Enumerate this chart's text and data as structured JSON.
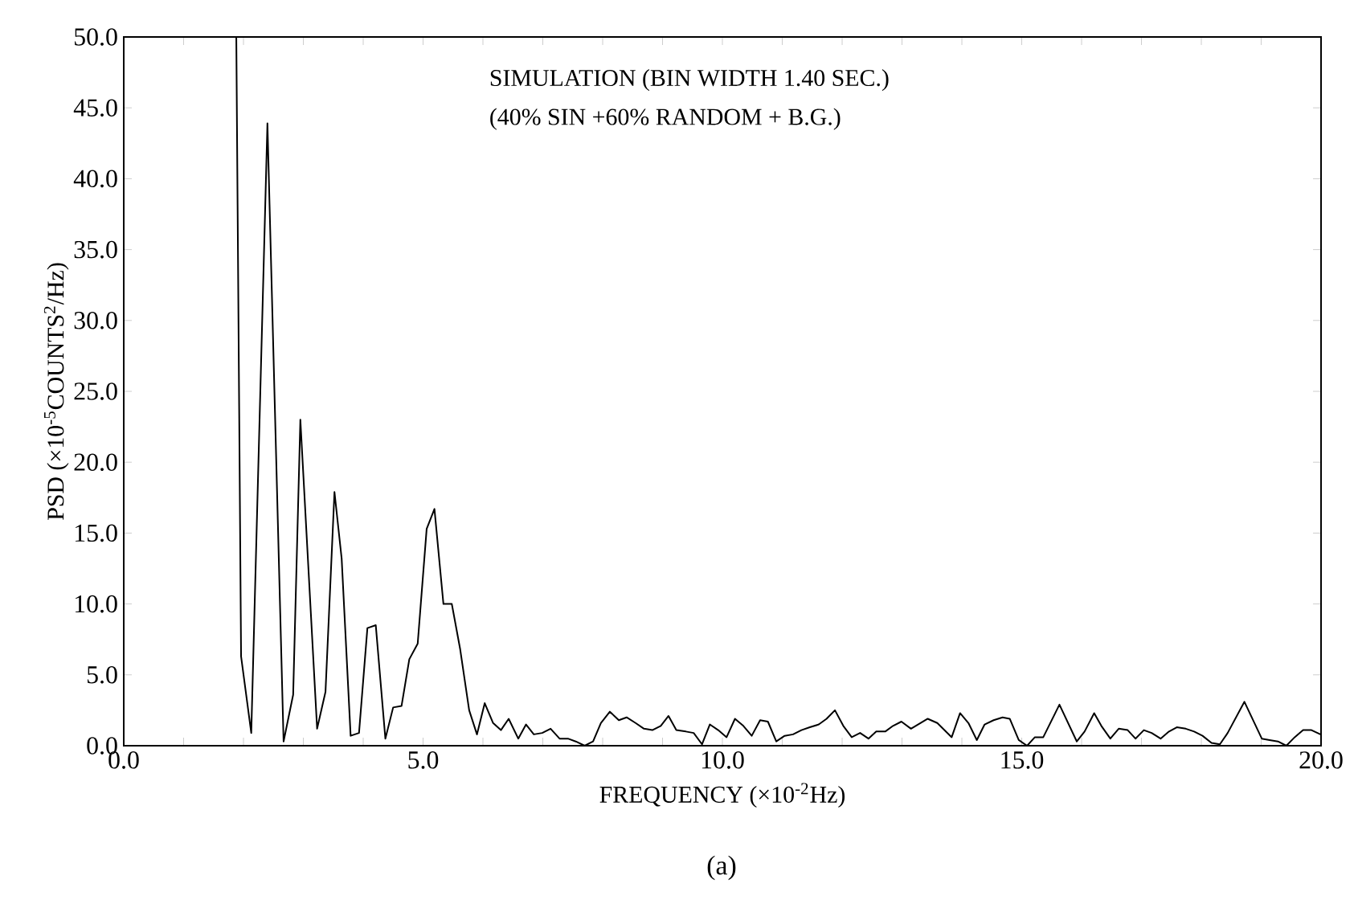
{
  "chart_data": {
    "type": "line",
    "color": "#000000",
    "xlabel": "FREQUENCY (×10$^{-2}$Hz)",
    "ylabel": "PSD (×10$^{-5}$COUNTS$^{2}$/Hz)",
    "annotations": [
      "SIMULATION (BIN WIDTH 1.40 SEC.)",
      "(40% SIN +60% RANDOM + B.G.)",
      "(a)"
    ],
    "xlim": [
      0,
      20
    ],
    "ylim": [
      0,
      50
    ],
    "xticks": [
      {
        "value": 0,
        "label": "0.0"
      },
      {
        "value": 1,
        "label": null
      },
      {
        "value": 2,
        "label": null
      },
      {
        "value": 3,
        "label": null
      },
      {
        "value": 4,
        "label": null
      },
      {
        "value": 5,
        "label": "5.0"
      },
      {
        "value": 6,
        "label": null
      },
      {
        "value": 7,
        "label": null
      },
      {
        "value": 8,
        "label": null
      },
      {
        "value": 9,
        "label": null
      },
      {
        "value": 10,
        "label": "10.0"
      },
      {
        "value": 11,
        "label": null
      },
      {
        "value": 12,
        "label": null
      },
      {
        "value": 13,
        "label": null
      },
      {
        "value": 14,
        "label": null
      },
      {
        "value": 15,
        "label": "15.0"
      },
      {
        "value": 16,
        "label": null
      },
      {
        "value": 17,
        "label": null
      },
      {
        "value": 18,
        "label": null
      },
      {
        "value": 19,
        "label": null
      },
      {
        "value": 20,
        "label": "20.0"
      }
    ],
    "yticks": [
      {
        "value": 0,
        "label": "0.0"
      },
      {
        "value": 5,
        "label": "5.0"
      },
      {
        "value": 10,
        "label": "10.0"
      },
      {
        "value": 15,
        "label": "15.0"
      },
      {
        "value": 20,
        "label": "20.0"
      },
      {
        "value": 25,
        "label": "25.0"
      },
      {
        "value": 30,
        "label": "30.0"
      },
      {
        "value": 35,
        "label": "35.0"
      },
      {
        "value": 40,
        "label": "40.0"
      },
      {
        "value": 45,
        "label": "45.0"
      },
      {
        "value": 50,
        "label": "50.0"
      }
    ],
    "x": [
      1.88,
      1.96,
      2.13,
      2.4,
      2.67,
      2.83,
      2.95,
      3.23,
      3.37,
      3.52,
      3.64,
      3.79,
      3.93,
      4.07,
      4.21,
      4.37,
      4.5,
      4.64,
      4.77,
      4.91,
      5.06,
      5.19,
      5.34,
      5.48,
      5.62,
      5.77,
      5.9,
      6.03,
      6.17,
      6.3,
      6.43,
      6.59,
      6.72,
      6.85,
      6.99,
      7.13,
      7.28,
      7.42,
      7.55,
      7.7,
      7.84,
      7.97,
      8.12,
      8.27,
      8.4,
      8.55,
      8.69,
      8.83,
      8.97,
      9.1,
      9.23,
      9.39,
      9.52,
      9.66,
      9.79,
      9.93,
      10.07,
      10.21,
      10.35,
      10.49,
      10.63,
      10.76,
      10.9,
      11.04,
      11.18,
      11.32,
      11.46,
      11.61,
      11.74,
      11.88,
      12.02,
      12.16,
      12.3,
      12.44,
      12.57,
      12.72,
      12.85,
      12.99,
      13.15,
      13.43,
      13.59,
      13.83,
      13.97,
      14.11,
      14.25,
      14.38,
      14.53,
      14.68,
      14.8,
      14.95,
      15.09,
      15.22,
      15.36,
      15.63,
      15.92,
      16.05,
      16.21,
      16.33,
      16.48,
      16.62,
      16.77,
      16.9,
      17.04,
      17.17,
      17.32,
      17.46,
      17.59,
      17.74,
      17.88,
      18.02,
      18.17,
      18.31,
      18.44,
      18.72,
      19.01,
      19.14,
      19.28,
      19.42,
      19.56,
      19.7,
      19.84,
      19.99
    ],
    "values": [
      50,
      6.3,
      0.9,
      43.9,
      0.3,
      3.6,
      23,
      1.2,
      3.8,
      17.9,
      13.2,
      0.7,
      0.9,
      8.3,
      8.5,
      0.5,
      2.7,
      2.8,
      6.1,
      7.2,
      15.3,
      16.7,
      10.0,
      10.0,
      6.8,
      2.5,
      0.8,
      3.0,
      1.6,
      1.1,
      1.9,
      0.5,
      1.5,
      0.8,
      0.9,
      1.2,
      0.5,
      0.5,
      0.3,
      0.0,
      0.3,
      1.6,
      2.4,
      1.8,
      2.0,
      1.6,
      1.2,
      1.1,
      1.4,
      2.1,
      1.1,
      1.0,
      0.9,
      0.1,
      1.5,
      1.1,
      0.6,
      1.9,
      1.4,
      0.7,
      1.8,
      1.7,
      0.3,
      0.7,
      0.8,
      1.1,
      1.3,
      1.5,
      1.9,
      2.5,
      1.4,
      0.6,
      0.9,
      0.5,
      1.0,
      1.0,
      1.4,
      1.7,
      1.2,
      1.9,
      1.6,
      0.6,
      2.3,
      1.6,
      0.4,
      1.5,
      1.8,
      2.0,
      1.9,
      0.4,
      0.0,
      0.6,
      0.6,
      2.9,
      0.3,
      1.0,
      2.3,
      1.4,
      0.5,
      1.2,
      1.1,
      0.5,
      1.1,
      0.9,
      0.5,
      1.0,
      1.3,
      1.2,
      1.0,
      0.7,
      0.2,
      0.1,
      0.9,
      3.1,
      0.5,
      0.4,
      0.3,
      0.0,
      0.6,
      1.1,
      1.1,
      0.8
    ]
  }
}
